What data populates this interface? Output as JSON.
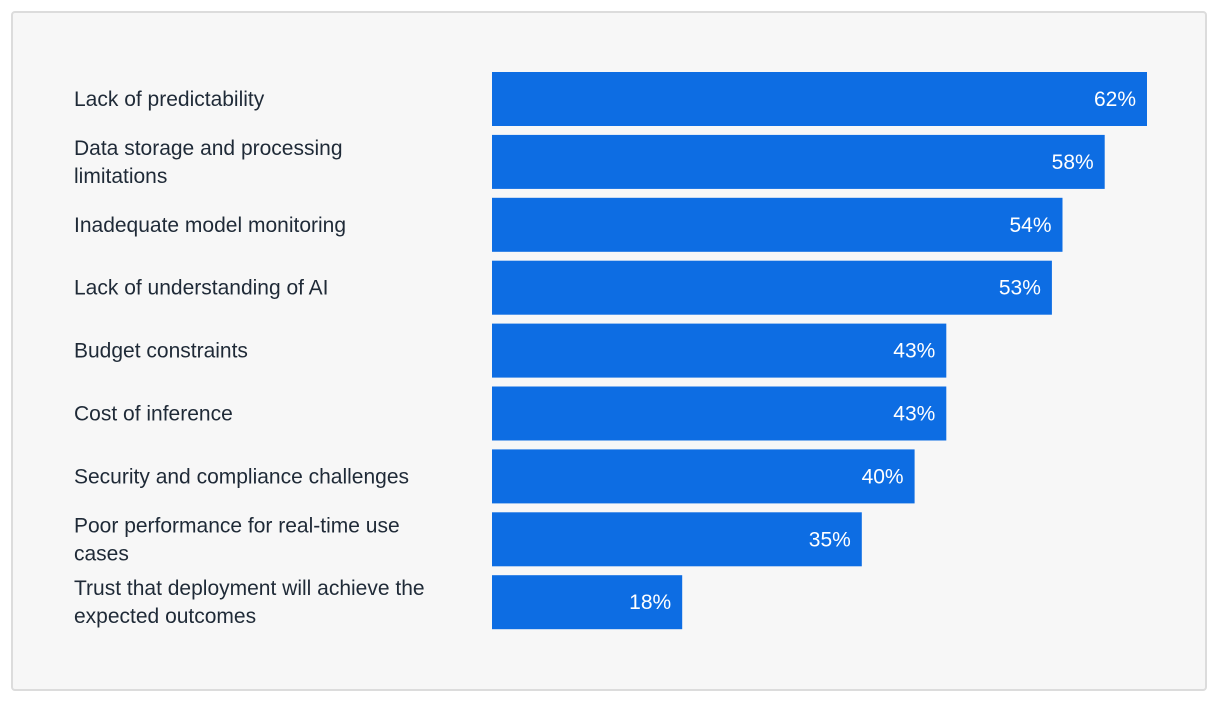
{
  "chart_data": {
    "type": "bar",
    "orientation": "horizontal",
    "categories": [
      "Lack of predictability",
      "Data storage and processing limitations",
      "Inadequate model monitoring",
      "Lack of understanding of AI",
      "Budget constraints",
      "Cost of inference",
      "Security and compliance challenges",
      "Poor performance for real-time use cases",
      "Trust that deployment will achieve the expected outcomes"
    ],
    "label_lines": [
      [
        "Lack of predictability"
      ],
      [
        "Data storage and processing",
        "limitations"
      ],
      [
        "Inadequate model monitoring"
      ],
      [
        "Lack of understanding of AI"
      ],
      [
        "Budget constraints"
      ],
      [
        "Cost of inference"
      ],
      [
        "Security and compliance challenges"
      ],
      [
        "Poor performance for real-time use",
        "cases"
      ],
      [
        "Trust that deployment will achieve the",
        "expected outcomes"
      ]
    ],
    "values": [
      62,
      58,
      54,
      53,
      43,
      43,
      40,
      35,
      18
    ],
    "value_labels": [
      "62%",
      "58%",
      "54%",
      "53%",
      "43%",
      "43%",
      "40%",
      "35%",
      "18%"
    ],
    "bar_color": "#0d6de3",
    "xlim": [
      0,
      62
    ],
    "grid": false,
    "legend": "none"
  }
}
